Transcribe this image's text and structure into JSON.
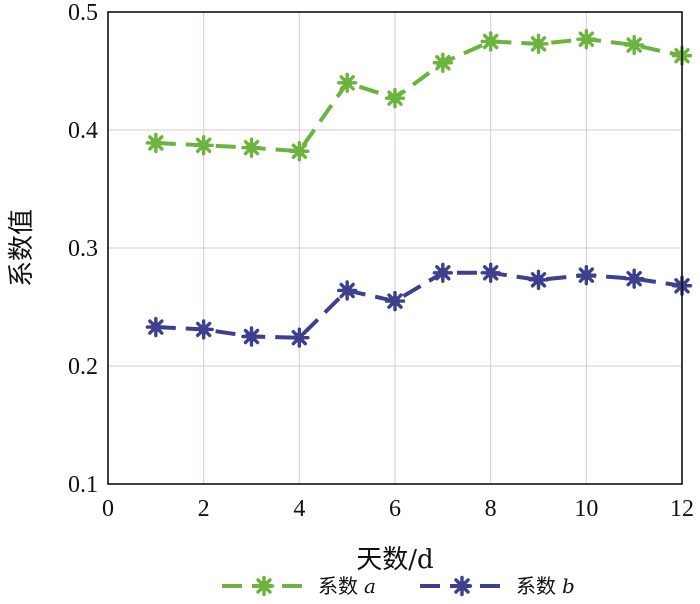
{
  "chart_data": {
    "type": "line",
    "title": "",
    "xlabel": "天数/d",
    "ylabel": "系数值",
    "xlim": [
      0,
      12
    ],
    "ylim": [
      0.1,
      0.5
    ],
    "xticks": [
      "0",
      "2",
      "4",
      "6",
      "8",
      "10",
      "12"
    ],
    "yticks": [
      "0.1",
      "0.2",
      "0.3",
      "0.4",
      "0.5"
    ],
    "grid": true,
    "legend_position": "bottom",
    "x": [
      1,
      2,
      3,
      4,
      5,
      6,
      7,
      8,
      9,
      10,
      11,
      12
    ],
    "series": [
      {
        "name": "系数",
        "name_suffix": "a",
        "color": "#6db33f",
        "marker": "asterisk",
        "line_style": "dashed",
        "values": [
          0.389,
          0.387,
          0.385,
          0.382,
          0.44,
          0.427,
          0.457,
          0.475,
          0.473,
          0.477,
          0.472,
          0.463
        ]
      },
      {
        "name": "系数",
        "name_suffix": "b",
        "color": "#3d3f8f",
        "marker": "asterisk",
        "line_style": "dashed",
        "values": [
          0.233,
          0.231,
          0.225,
          0.224,
          0.264,
          0.255,
          0.279,
          0.279,
          0.273,
          0.277,
          0.274,
          0.268
        ]
      }
    ]
  }
}
